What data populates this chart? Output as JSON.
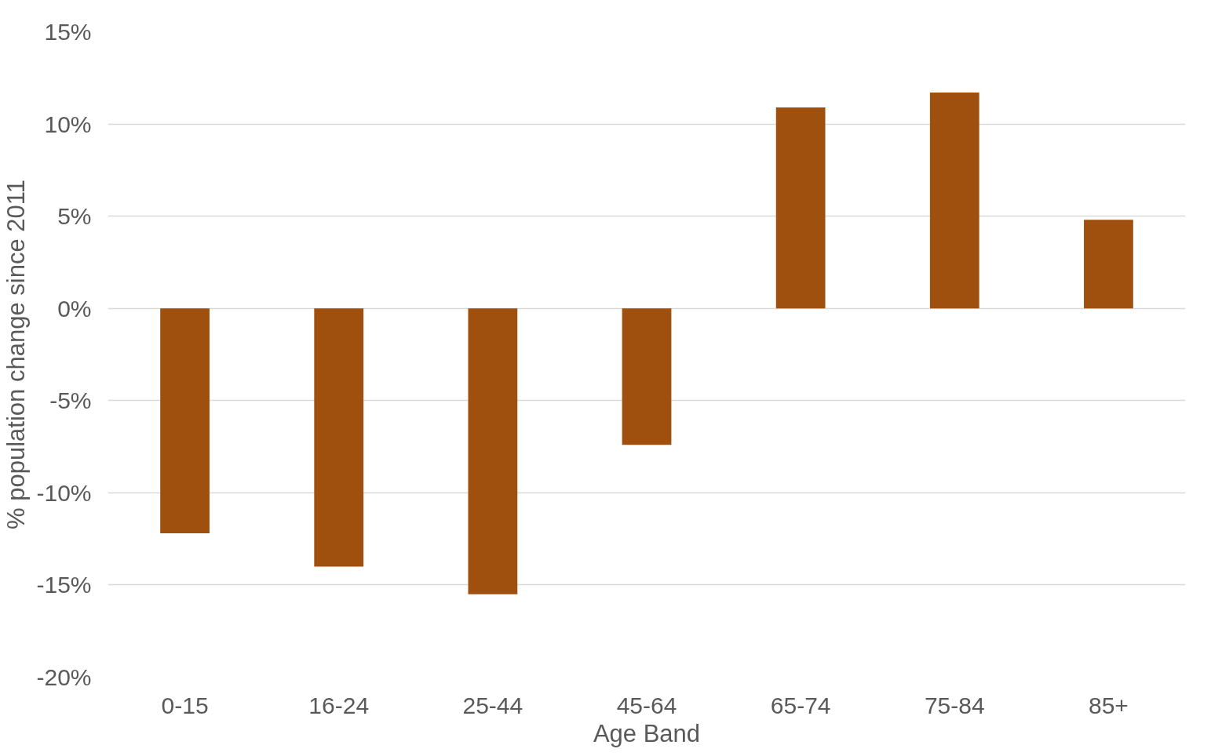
{
  "chart_data": {
    "type": "bar",
    "xlabel": "Age Band",
    "ylabel": "% population change since 2011",
    "categories": [
      "0-15",
      "16-24",
      "25-44",
      "45-64",
      "65-74",
      "75-84",
      "85+"
    ],
    "values": [
      -12.2,
      -14.0,
      -15.5,
      -7.4,
      10.9,
      11.7,
      4.8
    ],
    "color": "#a0500e",
    "ylim": [
      -20,
      15
    ],
    "yticks": [
      {
        "value": -20,
        "label": "-20%"
      },
      {
        "value": -15,
        "label": "-15%"
      },
      {
        "value": -10,
        "label": "-10%"
      },
      {
        "value": -5,
        "label": "-5%"
      },
      {
        "value": 0,
        "label": "0%"
      },
      {
        "value": 5,
        "label": "5%"
      },
      {
        "value": 10,
        "label": "10%"
      },
      {
        "value": 15,
        "label": "15%"
      }
    ],
    "grid": "y"
  }
}
